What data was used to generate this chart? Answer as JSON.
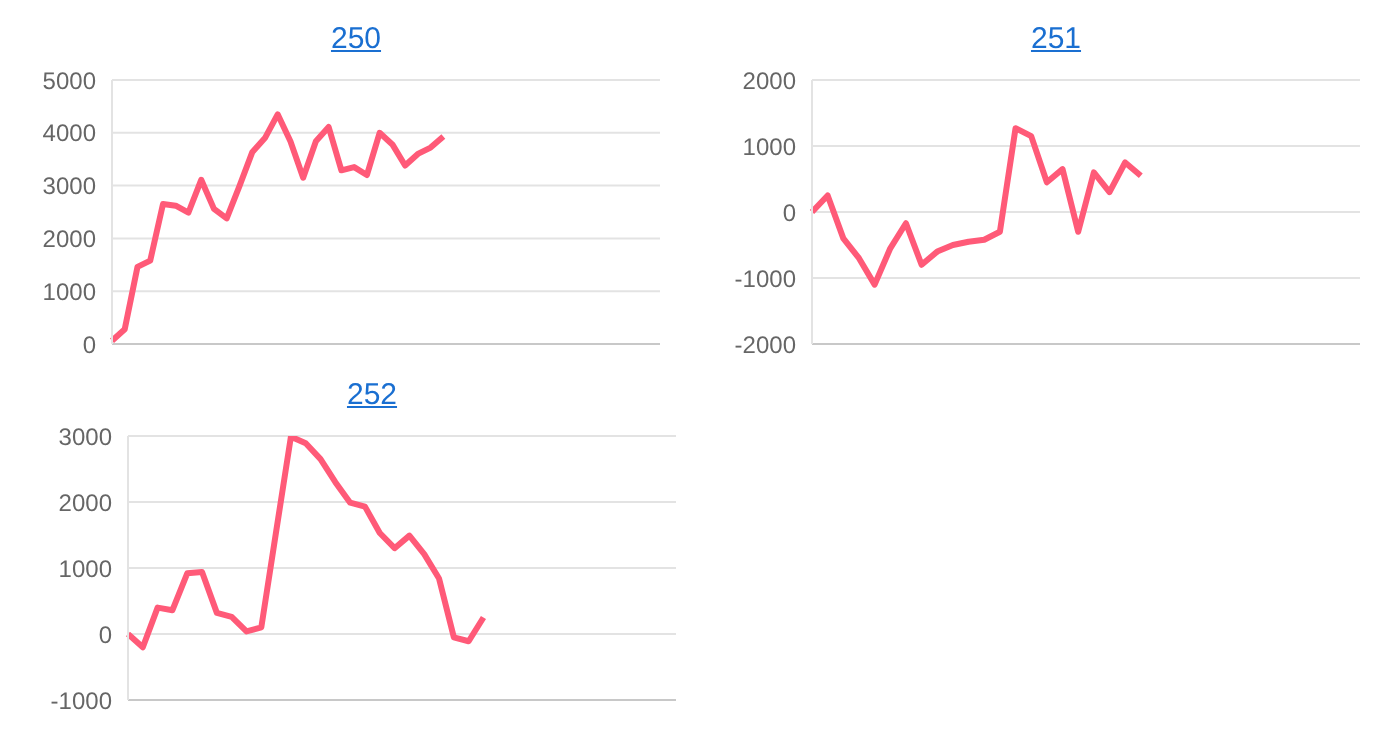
{
  "chart_data": [
    {
      "type": "line",
      "title": "250",
      "categories": [
        null,
        null,
        null,
        null,
        null,
        null,
        null,
        null,
        null,
        null,
        null,
        null,
        null,
        null,
        null,
        null,
        null,
        null,
        null,
        null,
        null,
        null,
        null,
        null,
        null,
        null,
        null,
        null,
        null,
        null,
        null,
        null,
        null,
        null,
        null,
        null,
        null,
        null,
        null,
        null,
        null,
        null,
        null,
        null
      ],
      "series": [
        {
          "color": "#ff5a78",
          "values": [
            60,
            280,
            1460,
            1580,
            2650,
            2620,
            2490,
            3110,
            2560,
            2380,
            2990,
            3630,
            3900,
            4350,
            3840,
            3150,
            3840,
            4110,
            3290,
            3350,
            3200,
            4000,
            3780,
            3380,
            3600,
            3720,
            3930,
            null,
            null,
            null,
            null,
            null,
            null,
            null,
            null,
            null,
            null,
            null,
            null,
            null,
            null,
            null,
            null,
            null
          ]
        }
      ],
      "ylim": [
        0,
        5000
      ],
      "yticks": [
        0,
        1000,
        2000,
        3000,
        4000,
        5000
      ],
      "grid": "y",
      "tick_labels": "y",
      "marker": "none",
      "legend": false
    },
    {
      "type": "line",
      "title": "251",
      "categories": [
        null,
        null,
        null,
        null,
        null,
        null,
        null,
        null,
        null,
        null,
        null,
        null,
        null,
        null,
        null,
        null,
        null,
        null,
        null,
        null,
        null,
        null,
        null,
        null,
        null,
        null,
        null,
        null,
        null,
        null,
        null,
        null,
        null,
        null,
        null,
        null
      ],
      "series": [
        {
          "color": "#ff5a78",
          "values": [
            0,
            250,
            -400,
            -700,
            -1100,
            -550,
            -170,
            -800,
            -600,
            -500,
            -450,
            -420,
            -300,
            1270,
            1150,
            450,
            650,
            -300,
            600,
            300,
            750,
            550,
            null,
            null,
            null,
            null,
            null,
            null,
            null,
            null,
            null,
            null,
            null,
            null,
            null,
            null
          ]
        }
      ],
      "ylim": [
        -2000,
        2000
      ],
      "yticks": [
        -2000,
        -1000,
        0,
        1000,
        2000
      ],
      "grid": "y",
      "tick_labels": "y",
      "marker": "none",
      "legend": false
    },
    {
      "type": "line",
      "title": "252",
      "categories": [
        null,
        null,
        null,
        null,
        null,
        null,
        null,
        null,
        null,
        null,
        null,
        null,
        null,
        null,
        null,
        null,
        null,
        null,
        null,
        null,
        null,
        null,
        null,
        null,
        null,
        null,
        null,
        null,
        null,
        null,
        null,
        null,
        null,
        null,
        null,
        null,
        null,
        null
      ],
      "series": [
        {
          "color": "#ff5a78",
          "values": [
            0,
            -200,
            400,
            360,
            920,
            940,
            320,
            260,
            40,
            100,
            1550,
            2990,
            2890,
            2650,
            2300,
            1990,
            1930,
            1530,
            1300,
            1490,
            1210,
            840,
            -50,
            -110,
            250,
            null,
            null,
            null,
            null,
            null,
            null,
            null,
            null,
            null,
            null,
            null,
            null,
            null
          ]
        }
      ],
      "ylim": [
        -1000,
        3000
      ],
      "yticks": [
        -1000,
        0,
        1000,
        2000,
        3000
      ],
      "grid": "y",
      "tick_labels": "y",
      "marker": "none",
      "legend": false
    }
  ]
}
